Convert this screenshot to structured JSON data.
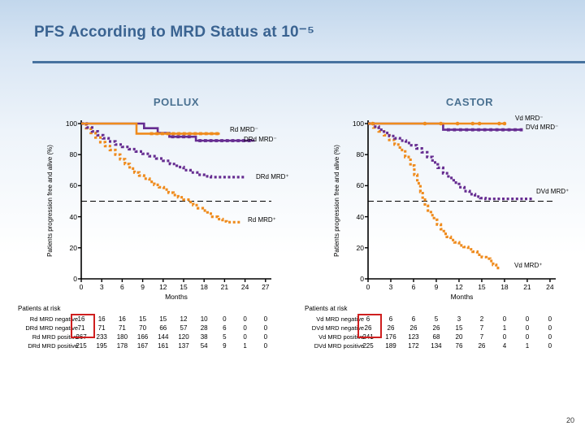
{
  "slide": {
    "title": "PFS According to MRD Status at 10⁻⁵",
    "page_number": "20"
  },
  "chart_data": [
    {
      "type": "line",
      "title": "POLLUX",
      "xlabel": "Months",
      "ylabel": "Patients progression free and alive (%)",
      "xticks": [
        0,
        3,
        6,
        9,
        12,
        15,
        18,
        21,
        24,
        27
      ],
      "yticks": [
        0,
        20,
        40,
        60,
        80,
        100
      ],
      "xlim": [
        0,
        27
      ],
      "ylim": [
        0,
        100
      ],
      "reference_line_y": 50,
      "series": [
        {
          "name": "Rd MRD⁻",
          "color": "#ef8b1d",
          "style": "solid",
          "marker": "square",
          "points": [
            [
              0,
              100
            ],
            [
              8.1,
              100
            ],
            [
              8.1,
              93.5
            ],
            [
              20.3,
              93.5
            ]
          ],
          "marker_points": [
            [
              10.3,
              93.5
            ],
            [
              11.1,
              93.5
            ],
            [
              11.9,
              93.5
            ],
            [
              12.7,
              93.5
            ],
            [
              13.5,
              93.5
            ],
            [
              14.3,
              93.5
            ],
            [
              15.1,
              93.5
            ],
            [
              15.9,
              93.5
            ],
            [
              16.7,
              93.5
            ],
            [
              17.5,
              93.5
            ],
            [
              18.3,
              93.5
            ],
            [
              19.1,
              93.5
            ],
            [
              19.9,
              93.5
            ]
          ]
        },
        {
          "name": "DRd MRD⁻",
          "color": "#662d91",
          "style": "solid",
          "marker": "square",
          "points": [
            [
              0,
              100
            ],
            [
              9.2,
              100
            ],
            [
              9.2,
              97
            ],
            [
              11.2,
              97
            ],
            [
              11.2,
              94
            ],
            [
              12.9,
              94
            ],
            [
              12.9,
              91.5
            ],
            [
              16.8,
              91.5
            ],
            [
              16.8,
              89
            ],
            [
              25.4,
              89
            ]
          ],
          "marker_points": [
            [
              13.4,
              91.5
            ],
            [
              14.2,
              91.5
            ],
            [
              15.0,
              91.5
            ],
            [
              15.8,
              91.5
            ],
            [
              17.4,
              89
            ],
            [
              18.2,
              89
            ],
            [
              19.0,
              89
            ],
            [
              19.8,
              89
            ],
            [
              20.6,
              89
            ],
            [
              21.4,
              89
            ],
            [
              22.2,
              89
            ],
            [
              23.0,
              89
            ],
            [
              23.8,
              89
            ],
            [
              24.6,
              89
            ]
          ]
        },
        {
          "name": "DRd MRD⁺",
          "color": "#662d91",
          "style": "dotted",
          "marker": null,
          "points": [
            [
              0,
              100
            ],
            [
              0.8,
              97.5
            ],
            [
              1.6,
              95
            ],
            [
              2.4,
              92.5
            ],
            [
              3.2,
              90.5
            ],
            [
              4,
              88.5
            ],
            [
              5,
              86.5
            ],
            [
              6,
              85
            ],
            [
              7,
              83.5
            ],
            [
              8,
              82
            ],
            [
              9,
              80.5
            ],
            [
              10,
              79
            ],
            [
              11,
              77.5
            ],
            [
              12,
              76
            ],
            [
              13,
              74
            ],
            [
              14,
              72
            ],
            [
              15,
              70
            ],
            [
              16,
              68.5
            ],
            [
              17,
              67
            ],
            [
              18,
              66
            ],
            [
              19,
              65.5
            ],
            [
              24,
              65.5
            ]
          ],
          "marker_points": []
        },
        {
          "name": "Rd MRD⁺",
          "color": "#ef8b1d",
          "style": "dotted",
          "marker": null,
          "points": [
            [
              0,
              100
            ],
            [
              0.7,
              97
            ],
            [
              1.4,
              94
            ],
            [
              2.1,
              91
            ],
            [
              2.8,
              88
            ],
            [
              3.5,
              85.5
            ],
            [
              4.2,
              83
            ],
            [
              5,
              80
            ],
            [
              5.7,
              77
            ],
            [
              6.4,
              74
            ],
            [
              7.1,
              71
            ],
            [
              7.8,
              68.5
            ],
            [
              8.5,
              66.5
            ],
            [
              9.2,
              64.5
            ],
            [
              10,
              62.5
            ],
            [
              10.7,
              60.5
            ],
            [
              11.4,
              59
            ],
            [
              12.1,
              57.5
            ],
            [
              12.8,
              55.5
            ],
            [
              13.5,
              54
            ],
            [
              14.2,
              52.5
            ],
            [
              15,
              51
            ],
            [
              15.7,
              49.5
            ],
            [
              16.4,
              47.5
            ],
            [
              17.1,
              45.5
            ],
            [
              17.8,
              44
            ],
            [
              18.5,
              42
            ],
            [
              19.2,
              40
            ],
            [
              20,
              38.5
            ],
            [
              20.7,
              37
            ],
            [
              21.3,
              36.5
            ],
            [
              23.3,
              36.5
            ]
          ],
          "marker_points": []
        }
      ],
      "at_risk": {
        "header": "Patients at risk",
        "rows": [
          {
            "label": "Rd MRD negative",
            "values": [
              16,
              16,
              16,
              15,
              15,
              12,
              10,
              0,
              0,
              0
            ]
          },
          {
            "label": "DRd MRD negative",
            "values": [
              71,
              71,
              71,
              70,
              66,
              57,
              28,
              6,
              0,
              0
            ]
          },
          {
            "label": "Rd MRD positive",
            "values": [
              267,
              233,
              180,
              166,
              144,
              120,
              38,
              5,
              0,
              0
            ]
          },
          {
            "label": "DRd MRD positive",
            "values": [
              215,
              195,
              178,
              167,
              161,
              137,
              54,
              9,
              1,
              0
            ]
          }
        ],
        "highlight": {
          "column": 0,
          "rows": [
            0,
            1
          ],
          "color": "#cf1f1f"
        }
      }
    },
    {
      "type": "line",
      "title": "CASTOR",
      "xlabel": "Months",
      "ylabel": "Patients progression free and alive (%)",
      "xticks": [
        0,
        3,
        6,
        9,
        12,
        15,
        18,
        21,
        24
      ],
      "yticks": [
        0,
        20,
        40,
        60,
        80,
        100
      ],
      "xlim": [
        0,
        24
      ],
      "ylim": [
        0,
        100
      ],
      "reference_line_y": 50,
      "series": [
        {
          "name": "Vd MRD⁻",
          "color": "#ef8b1d",
          "style": "solid",
          "marker": "circle",
          "points": [
            [
              0,
              100
            ],
            [
              18.2,
              100
            ]
          ],
          "marker_points": [
            [
              0.6,
              100
            ],
            [
              7.5,
              100
            ],
            [
              9.6,
              100
            ],
            [
              11.8,
              100
            ],
            [
              13.8,
              100
            ],
            [
              14.7,
              100
            ],
            [
              17.3,
              100
            ],
            [
              18,
              100
            ]
          ]
        },
        {
          "name": "DVd MRD⁻",
          "color": "#662d91",
          "style": "solid",
          "marker": "square",
          "points": [
            [
              0,
              100
            ],
            [
              9.9,
              100
            ],
            [
              9.9,
              96
            ],
            [
              20.4,
              96
            ]
          ],
          "marker_points": [
            [
              10.6,
              96
            ],
            [
              11.4,
              96
            ],
            [
              12.2,
              96
            ],
            [
              13.0,
              96
            ],
            [
              13.8,
              96
            ],
            [
              14.6,
              96
            ],
            [
              15.4,
              96
            ],
            [
              16.2,
              96
            ],
            [
              17.0,
              96
            ],
            [
              17.8,
              96
            ],
            [
              18.6,
              96
            ],
            [
              19.4,
              96
            ],
            [
              20.2,
              96
            ]
          ]
        },
        {
          "name": "DVd MRD⁺",
          "color": "#662d91",
          "style": "dotted",
          "marker": null,
          "points": [
            [
              0,
              100
            ],
            [
              0.7,
              98
            ],
            [
              1.4,
              96
            ],
            [
              2.1,
              94
            ],
            [
              2.8,
              92
            ],
            [
              3.5,
              90.5
            ],
            [
              4.2,
              89
            ],
            [
              5,
              87.5
            ],
            [
              5.7,
              86
            ],
            [
              6.4,
              84
            ],
            [
              7.1,
              81.5
            ],
            [
              7.8,
              78.5
            ],
            [
              8.5,
              75
            ],
            [
              9.2,
              71.5
            ],
            [
              9.9,
              68
            ],
            [
              10.6,
              65
            ],
            [
              11.3,
              62
            ],
            [
              12,
              59
            ],
            [
              12.7,
              56.5
            ],
            [
              13.4,
              54.5
            ],
            [
              14.1,
              53
            ],
            [
              14.8,
              52
            ],
            [
              15.5,
              51.5
            ],
            [
              21.8,
              51.5
            ]
          ],
          "marker_points": []
        },
        {
          "name": "Vd MRD⁺",
          "color": "#ef8b1d",
          "style": "dotted",
          "marker": null,
          "points": [
            [
              0,
              100
            ],
            [
              0.7,
              97.5
            ],
            [
              1.4,
              95
            ],
            [
              2.1,
              92.5
            ],
            [
              2.8,
              89.5
            ],
            [
              3.5,
              86.5
            ],
            [
              4.2,
              83
            ],
            [
              4.9,
              78.5
            ],
            [
              5.6,
              73
            ],
            [
              6.1,
              67
            ],
            [
              6.5,
              61.5
            ],
            [
              6.9,
              56
            ],
            [
              7.2,
              51
            ],
            [
              7.5,
              47
            ],
            [
              7.9,
              44
            ],
            [
              8.3,
              41
            ],
            [
              8.7,
              38
            ],
            [
              9.1,
              35
            ],
            [
              9.6,
              32
            ],
            [
              10,
              29
            ],
            [
              10.4,
              27
            ],
            [
              10.9,
              25
            ],
            [
              11.4,
              23.5
            ],
            [
              12,
              21.5
            ],
            [
              12.6,
              20.5
            ],
            [
              13.2,
              19
            ],
            [
              13.8,
              17.5
            ],
            [
              14.4,
              15.5
            ],
            [
              15,
              14
            ],
            [
              15.6,
              13
            ],
            [
              16.1,
              11.5
            ],
            [
              16.5,
              9
            ],
            [
              16.9,
              7
            ],
            [
              17.4,
              7
            ]
          ],
          "marker_points": []
        }
      ],
      "at_risk": {
        "header": "Patients at risk",
        "rows": [
          {
            "label": "Vd MRD negative",
            "values": [
              6,
              6,
              6,
              5,
              3,
              2,
              0,
              0,
              0
            ]
          },
          {
            "label": "DVd MRD negative",
            "values": [
              26,
              26,
              26,
              26,
              15,
              7,
              1,
              0,
              0
            ]
          },
          {
            "label": "Vd MRD positive",
            "values": [
              241,
              176,
              123,
              68,
              20,
              7,
              0,
              0,
              0
            ]
          },
          {
            "label": "DVd MRD positive",
            "values": [
              225,
              189,
              172,
              134,
              76,
              26,
              4,
              1,
              0
            ]
          }
        ],
        "highlight": {
          "column": 0,
          "rows": [
            0,
            1
          ],
          "color": "#cf1f1f"
        }
      }
    }
  ]
}
